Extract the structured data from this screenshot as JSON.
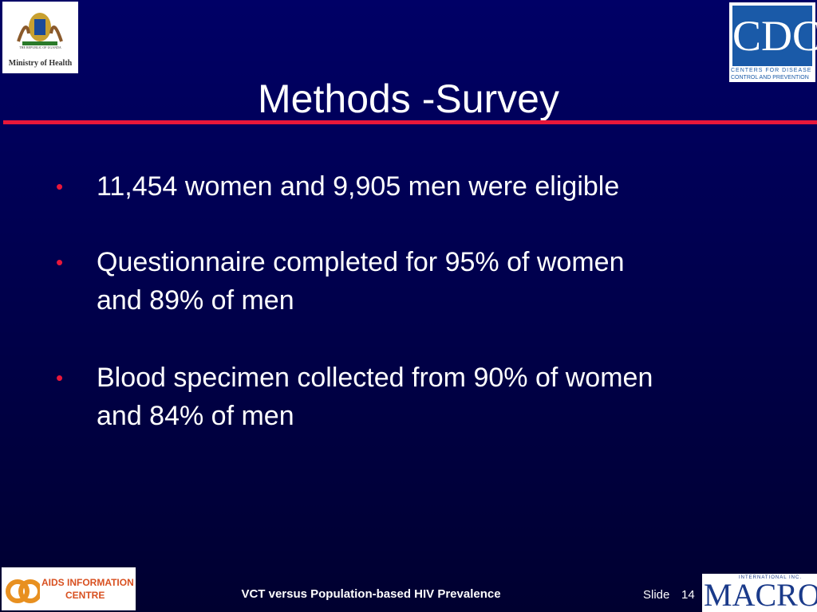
{
  "logos": {
    "uganda_top": "THE REPUBLIC OF UGANDA",
    "uganda_name": "Ministry of Health",
    "cdc": "CDC",
    "cdc_line1": "Centers for Disease",
    "cdc_line2": "Control and Prevention",
    "aic_line1": "AIDS INFORMATION",
    "aic_line2": "CENTRE",
    "macro_top": "INTERNATIONAL INC.",
    "macro": "MACRO"
  },
  "title": "Methods -Survey",
  "bullets": [
    {
      "lines": [
        "11,454 women and 9,905 men were eligible"
      ]
    },
    {
      "lines": [
        "Questionnaire completed for 95% of women",
        "and 89% of men"
      ]
    },
    {
      "lines": [
        "Blood specimen collected from 90% of women",
        "and 84% of men"
      ]
    }
  ],
  "footer": {
    "text": "VCT versus Population-based HIV Prevalence",
    "slide_label": "Slide",
    "slide_number": "14"
  }
}
